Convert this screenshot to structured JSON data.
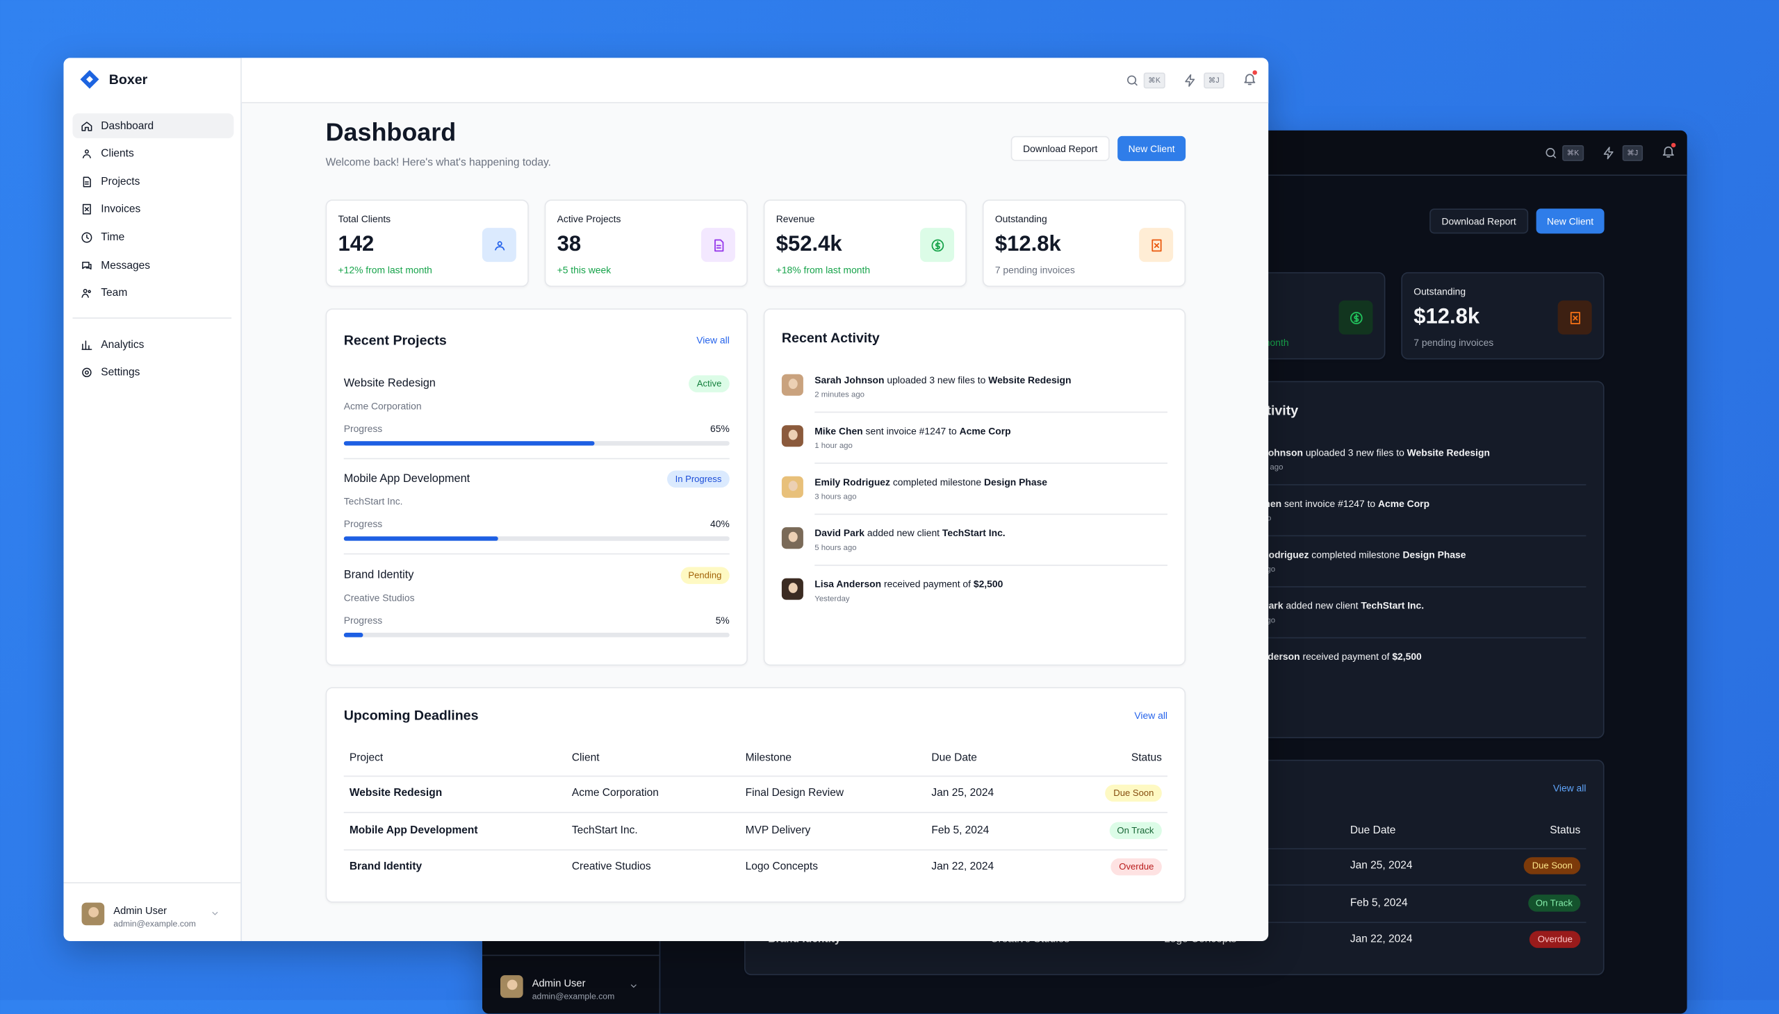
{
  "app": {
    "brand": "Boxer"
  },
  "nav": {
    "main": [
      "Dashboard",
      "Clients",
      "Projects",
      "Invoices",
      "Time",
      "Messages",
      "Team"
    ],
    "secondary": [
      "Analytics",
      "Settings"
    ]
  },
  "user": {
    "name": "Admin User",
    "email": "admin@example.com"
  },
  "topbar": {
    "search_shortcut": "⌘K",
    "actions_shortcut": "⌘J"
  },
  "header": {
    "title": "Dashboard",
    "subtitle": "Welcome back! Here's what's happening today.",
    "buttons": [
      "Download Report",
      "New Client"
    ]
  },
  "stats": [
    {
      "label": "Total Clients",
      "value": "142",
      "change": "+12% from last month"
    },
    {
      "label": "Active Projects",
      "value": "38",
      "change": "+5 this week"
    },
    {
      "label": "Revenue",
      "value": "$52.4k",
      "change": "+18% from last month"
    },
    {
      "label": "Outstanding",
      "value": "$12.8k",
      "change": "7 pending invoices"
    }
  ],
  "recent_projects": {
    "title": "Recent Projects",
    "link": "View all",
    "progress_label": "Progress",
    "items": [
      {
        "name": "Website Redesign",
        "client": "Acme Corporation",
        "status": "Active",
        "progress": {
          "value": 65,
          "label": "65%"
        }
      },
      {
        "name": "Mobile App Development",
        "client": "TechStart Inc.",
        "status": "In Progress",
        "progress": {
          "value": 40,
          "label": "40%"
        }
      },
      {
        "name": "Brand Identity",
        "client": "Creative Studios",
        "status": "Pending",
        "progress": {
          "value": 5,
          "label": "5%"
        }
      }
    ]
  },
  "recent_activity": {
    "title": "Recent Activity",
    "items": [
      {
        "user": "Sarah Johnson",
        "action": "uploaded 3 new files to",
        "target": "Website Redesign",
        "time": "2 minutes ago"
      },
      {
        "user": "Mike Chen",
        "action": "sent invoice #1247 to",
        "target": "Acme Corp",
        "time": "1 hour ago"
      },
      {
        "user": "Emily Rodriguez",
        "action": "completed milestone",
        "target": "Design Phase",
        "time": "3 hours ago"
      },
      {
        "user": "David Park",
        "action": "added new client",
        "target": "TechStart Inc.",
        "time": "5 hours ago"
      },
      {
        "user": "Lisa Anderson",
        "action": "received payment of",
        "target": "$2,500",
        "time": "Yesterday"
      }
    ]
  },
  "deadlines": {
    "title": "Upcoming Deadlines",
    "link": "View all",
    "columns": [
      "Project",
      "Client",
      "Milestone",
      "Due Date",
      "Status"
    ],
    "rows": [
      [
        "Website Redesign",
        "Acme Corporation",
        "Final Design Review",
        "Jan 25, 2024",
        "Due Soon"
      ],
      [
        "Mobile App Development",
        "TechStart Inc.",
        "MVP Delivery",
        "Feb 5, 2024",
        "On Track"
      ],
      [
        "Brand Identity",
        "Creative Studios",
        "Logo Concepts",
        "Jan 22, 2024",
        "Overdue"
      ]
    ]
  }
}
